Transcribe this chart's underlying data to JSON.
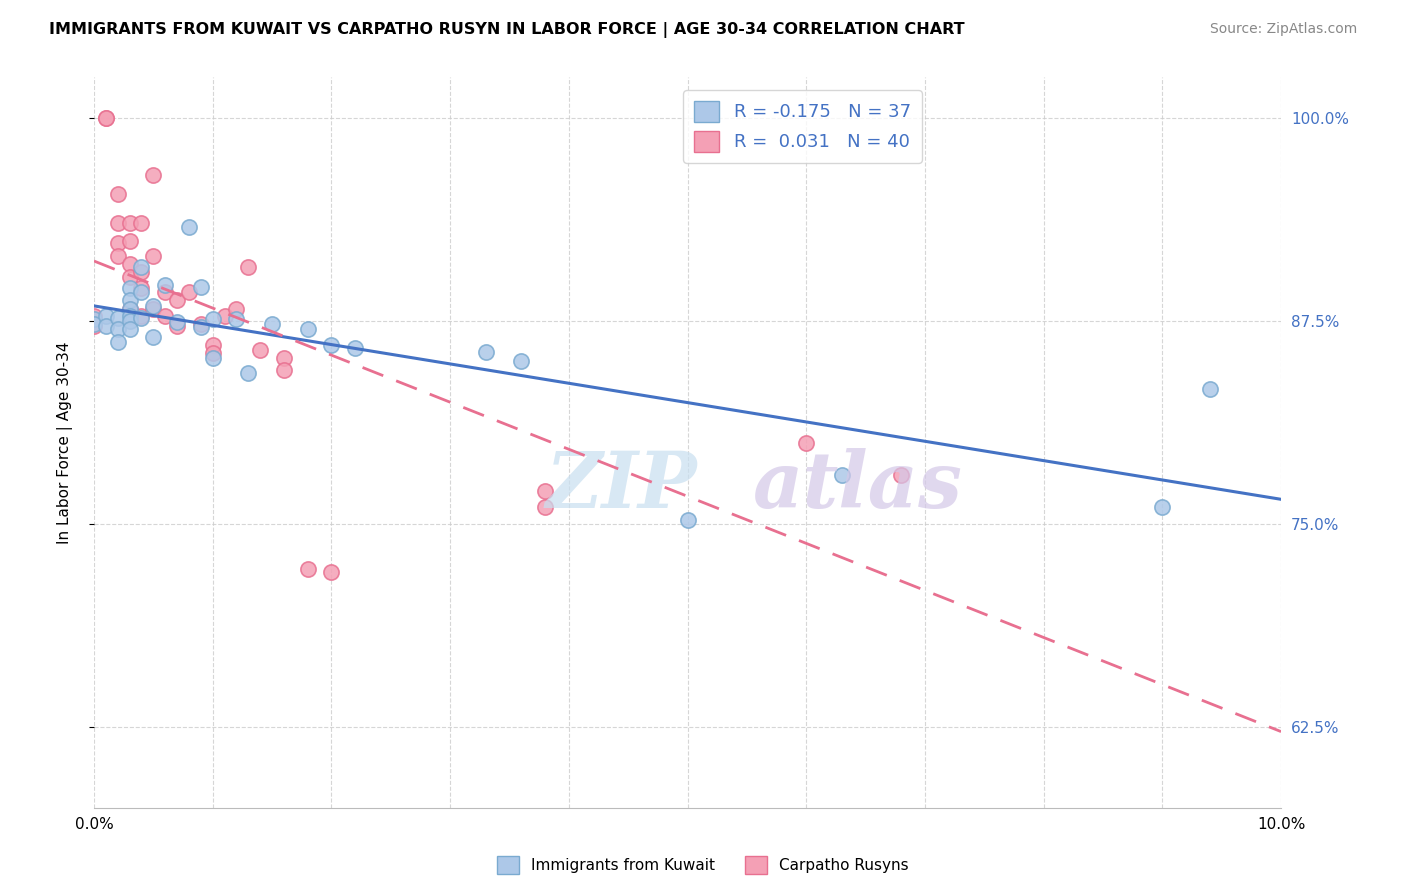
{
  "title": "IMMIGRANTS FROM KUWAIT VS CARPATHO RUSYN IN LABOR FORCE | AGE 30-34 CORRELATION CHART",
  "source": "Source: ZipAtlas.com",
  "ylabel": "In Labor Force | Age 30-34",
  "xmin": 0.0,
  "xmax": 0.1,
  "ymin": 0.575,
  "ymax": 1.025,
  "kuwait_R": -0.175,
  "kuwait_N": 37,
  "rusyn_R": 0.031,
  "rusyn_N": 40,
  "kuwait_color": "#adc8e8",
  "rusyn_color": "#f4a0b5",
  "kuwait_edge_color": "#7aaad0",
  "rusyn_edge_color": "#e87090",
  "kuwait_line_color": "#4472c4",
  "rusyn_line_color": "#e87090",
  "kuwait_points_x": [
    0.0,
    0.0,
    0.001,
    0.001,
    0.002,
    0.002,
    0.002,
    0.003,
    0.003,
    0.003,
    0.003,
    0.003,
    0.003,
    0.004,
    0.004,
    0.004,
    0.005,
    0.005,
    0.006,
    0.007,
    0.008,
    0.009,
    0.009,
    0.01,
    0.01,
    0.012,
    0.013,
    0.015,
    0.018,
    0.02,
    0.022,
    0.033,
    0.036,
    0.05,
    0.063,
    0.09,
    0.094
  ],
  "kuwait_points_y": [
    0.876,
    0.873,
    0.878,
    0.872,
    0.877,
    0.87,
    0.862,
    0.895,
    0.888,
    0.882,
    0.878,
    0.875,
    0.87,
    0.908,
    0.893,
    0.877,
    0.884,
    0.865,
    0.897,
    0.874,
    0.933,
    0.896,
    0.871,
    0.876,
    0.852,
    0.876,
    0.843,
    0.873,
    0.87,
    0.86,
    0.858,
    0.856,
    0.85,
    0.752,
    0.78,
    0.76,
    0.833
  ],
  "rusyn_points_x": [
    0.0,
    0.0,
    0.001,
    0.001,
    0.002,
    0.002,
    0.002,
    0.002,
    0.003,
    0.003,
    0.003,
    0.003,
    0.003,
    0.004,
    0.004,
    0.004,
    0.004,
    0.005,
    0.005,
    0.005,
    0.006,
    0.006,
    0.007,
    0.007,
    0.008,
    0.009,
    0.01,
    0.01,
    0.011,
    0.012,
    0.013,
    0.014,
    0.016,
    0.016,
    0.018,
    0.02,
    0.038,
    0.038,
    0.06,
    0.068
  ],
  "rusyn_points_y": [
    0.878,
    0.872,
    1.0,
    1.0,
    0.953,
    0.935,
    0.923,
    0.915,
    0.935,
    0.924,
    0.91,
    0.902,
    0.882,
    0.935,
    0.905,
    0.895,
    0.878,
    0.965,
    0.915,
    0.882,
    0.893,
    0.878,
    0.888,
    0.872,
    0.893,
    0.873,
    0.86,
    0.855,
    0.878,
    0.882,
    0.908,
    0.857,
    0.852,
    0.845,
    0.722,
    0.72,
    0.77,
    0.76,
    0.8,
    0.78
  ],
  "ytick_vals": [
    0.625,
    0.75,
    0.875,
    1.0
  ],
  "ytick_labels": [
    "62.5%",
    "75.0%",
    "87.5%",
    "100.0%"
  ],
  "xtick_vals": [
    0.0,
    0.01,
    0.02,
    0.03,
    0.04,
    0.05,
    0.06,
    0.07,
    0.08,
    0.09,
    0.1
  ]
}
